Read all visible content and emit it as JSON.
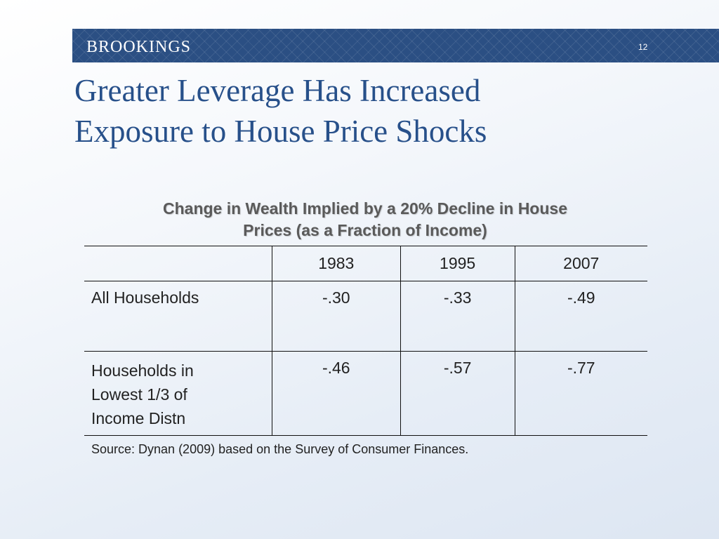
{
  "header": {
    "logo_text": "BROOKINGS",
    "slide_number": "12"
  },
  "title": {
    "line1": "Greater Leverage Has Increased",
    "line2": "Exposure to House Price Shocks"
  },
  "table": {
    "title_line1": "Change in Wealth Implied by a 20% Decline in House",
    "title_line2": "Prices (as a Fraction of Income)",
    "columns": [
      "",
      "1983",
      "1995",
      "2007"
    ],
    "rows": [
      {
        "label_lines": [
          "All Households"
        ],
        "values": [
          "-.30",
          "-.33",
          "-.49"
        ]
      },
      {
        "label_lines": [
          "Households in",
          "Lowest 1/3 of",
          "Income Distn"
        ],
        "values": [
          "-.46",
          "-.57",
          "-.77"
        ]
      }
    ]
  },
  "source": "Source:  Dynan (2009) based on the Survey of Consumer Finances.",
  "colors": {
    "header_bar": "#2b4f83",
    "title": "#27508a",
    "table_title": "#5a5a5a"
  }
}
